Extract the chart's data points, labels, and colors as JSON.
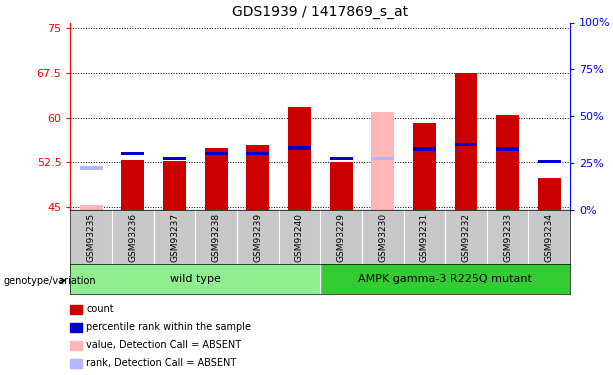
{
  "title": "GDS1939 / 1417869_s_at",
  "samples": [
    "GSM93235",
    "GSM93236",
    "GSM93237",
    "GSM93238",
    "GSM93239",
    "GSM93240",
    "GSM93229",
    "GSM93230",
    "GSM93231",
    "GSM93232",
    "GSM93233",
    "GSM93234"
  ],
  "count_values": [
    45.3,
    52.9,
    52.7,
    55.0,
    55.5,
    61.8,
    52.6,
    61.0,
    59.2,
    67.5,
    60.5,
    49.8
  ],
  "rank_values": [
    22.5,
    30.0,
    27.5,
    30.0,
    30.0,
    33.0,
    27.5,
    27.5,
    32.5,
    35.0,
    32.5,
    26.0
  ],
  "absent_flags": [
    true,
    false,
    false,
    false,
    false,
    false,
    false,
    true,
    false,
    false,
    false,
    false
  ],
  "ylim_left": [
    44.5,
    76
  ],
  "ylim_right": [
    0,
    100
  ],
  "yticks_left": [
    45,
    52.5,
    60,
    67.5,
    75
  ],
  "yticks_right": [
    0,
    25,
    50,
    75,
    100
  ],
  "red_color": "#CC0000",
  "blue_color": "#0000CC",
  "pink_color": "#FFB6B6",
  "lightblue_color": "#B6B6FF",
  "green_light": "#90EE90",
  "green_dark": "#33CC33",
  "bg_color": "#C8C8C8",
  "group_labels": [
    "wild type",
    "AMPK gamma-3 R225Q mutant"
  ],
  "legend_items": [
    {
      "label": "count",
      "color": "#CC0000"
    },
    {
      "label": "percentile rank within the sample",
      "color": "#0000CC"
    },
    {
      "label": "value, Detection Call = ABSENT",
      "color": "#FFB6B6"
    },
    {
      "label": "rank, Detection Call = ABSENT",
      "color": "#B6B6FF"
    }
  ]
}
